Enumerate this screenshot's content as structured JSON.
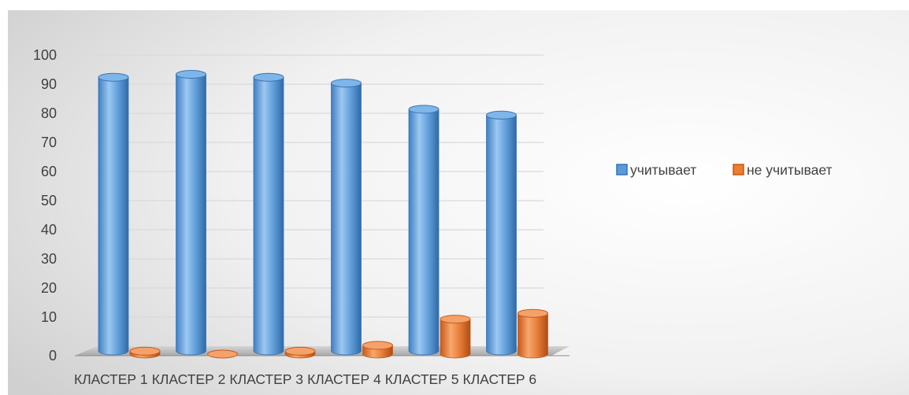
{
  "chart_data": {
    "type": "bar",
    "style": "3d-cylinder",
    "categories": [
      "КЛАСТЕР 1",
      "КЛАСТЕР 2",
      "КЛАСТЕР 3",
      "КЛАСТЕР 4",
      "КЛАСТЕР 5",
      "КЛАСТЕР 6"
    ],
    "series": [
      {
        "name": "учитывает",
        "values": [
          94,
          95,
          94,
          92,
          83,
          81
        ],
        "color": "#5B9BD5"
      },
      {
        "name": "не учитывает",
        "values": [
          1,
          0,
          1,
          3,
          12,
          14
        ],
        "color": "#ED7D31"
      }
    ],
    "ylim": [
      0,
      100
    ],
    "yticks": [
      0,
      10,
      20,
      30,
      40,
      50,
      60,
      70,
      80,
      90,
      100
    ],
    "grid": true,
    "legend": "right"
  }
}
